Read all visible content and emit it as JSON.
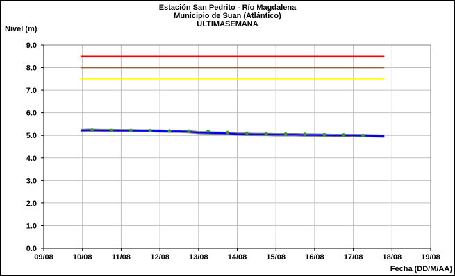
{
  "chart_data": {
    "type": "line",
    "title_lines": [
      "Estación San Pedrito - Río Magdalena",
      "Municipio de Suan (Atlántico)",
      "ULTIMASEMANA"
    ],
    "ylabel": "Nivel (m)",
    "xlabel": "Fecha (DD/M/AA)",
    "x_ticks": [
      "09/08",
      "10/08",
      "11/08",
      "12/08",
      "13/08",
      "14/08",
      "15/08",
      "16/08",
      "17/08",
      "18/08",
      "19/08"
    ],
    "y_ticks": [
      "0.0",
      "1.0",
      "2.0",
      "3.0",
      "4.0",
      "5.0",
      "6.0",
      "7.0",
      "8.0",
      "9.0"
    ],
    "xlim": [
      0,
      10
    ],
    "ylim": [
      0,
      9
    ],
    "grid": true,
    "thresholds": [
      {
        "value": 8.5,
        "color": "#ff0000",
        "x_range": [
          0.95,
          8.8
        ]
      },
      {
        "value": 8.0,
        "color": "#996633",
        "x_range": [
          0.95,
          8.8
        ]
      },
      {
        "value": 7.5,
        "color": "#ffff00",
        "x_range": [
          0.95,
          8.8
        ]
      }
    ],
    "series": [
      {
        "color": "#0000ff",
        "x": [
          0.95,
          1.2,
          1.5,
          1.75,
          2.0,
          2.25,
          2.5,
          2.75,
          3.0,
          3.25,
          3.5,
          3.75,
          4.0,
          4.25,
          4.5,
          4.75,
          5.0,
          5.25,
          5.5,
          5.75,
          6.0,
          6.25,
          6.5,
          6.75,
          7.0,
          7.25,
          7.5,
          7.75,
          8.0,
          8.25,
          8.5,
          8.8
        ],
        "y": [
          5.22,
          5.23,
          5.22,
          5.22,
          5.21,
          5.21,
          5.2,
          5.2,
          5.19,
          5.18,
          5.18,
          5.16,
          5.12,
          5.11,
          5.1,
          5.09,
          5.06,
          5.05,
          5.04,
          5.04,
          5.03,
          5.03,
          5.03,
          5.02,
          5.02,
          5.01,
          5.0,
          5.0,
          5.0,
          4.99,
          4.98,
          4.97
        ]
      }
    ],
    "markers": {
      "color": "#339933",
      "x": [
        1.25,
        1.75,
        2.25,
        2.75,
        3.25,
        3.75,
        4.25,
        4.75,
        5.25,
        5.75,
        6.25,
        6.75,
        7.25,
        7.75,
        8.25
      ],
      "y": [
        5.24,
        5.22,
        5.22,
        5.21,
        5.2,
        5.19,
        5.18,
        5.13,
        5.1,
        5.07,
        5.06,
        5.05,
        5.03,
        5.02,
        5.0
      ]
    }
  }
}
